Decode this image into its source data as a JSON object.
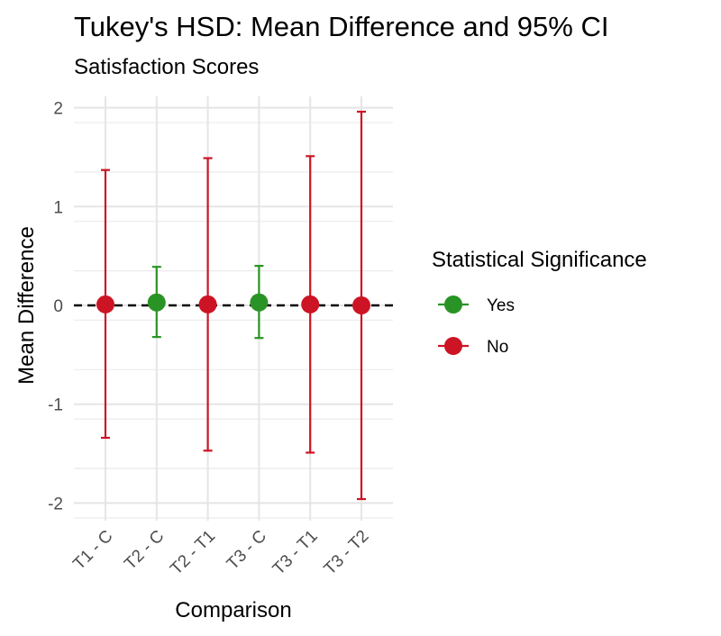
{
  "chart_data": {
    "type": "errorbar",
    "title": "Tukey's HSD: Mean Difference and 95% CI",
    "subtitle": "Satisfaction Scores",
    "xlabel": "Comparison",
    "ylabel": "Mean Difference",
    "ylim": [
      -2.15,
      2.15
    ],
    "yticks": [
      -2,
      -1,
      0,
      1,
      2
    ],
    "ytick_labels": [
      "-2",
      "-1",
      "0",
      "1",
      "2"
    ],
    "reference_line": 0,
    "categories": [
      "T1 - C",
      "T2 - C",
      "T2 - T1",
      "T3 - C",
      "T3 - T1",
      "T3 - T2"
    ],
    "points": [
      {
        "comparison": "T1 - C",
        "diff": 0.01,
        "lwr": -1.34,
        "upr": 1.37,
        "significant": "No"
      },
      {
        "comparison": "T2 - C",
        "diff": 0.03,
        "lwr": -0.32,
        "upr": 0.39,
        "significant": "Yes"
      },
      {
        "comparison": "T2 - T1",
        "diff": 0.01,
        "lwr": -1.47,
        "upr": 1.49,
        "significant": "No"
      },
      {
        "comparison": "T3 - C",
        "diff": 0.03,
        "lwr": -0.33,
        "upr": 0.4,
        "significant": "Yes"
      },
      {
        "comparison": "T3 - T1",
        "diff": 0.01,
        "lwr": -1.49,
        "upr": 1.51,
        "significant": "No"
      },
      {
        "comparison": "T3 - T2",
        "diff": 0.0,
        "lwr": -1.96,
        "upr": 1.96,
        "significant": "No"
      }
    ],
    "legend": {
      "title": "Statistical Significance",
      "position": "right",
      "entries": [
        {
          "label": "Yes",
          "color": "#2a9325"
        },
        {
          "label": "No",
          "color": "#cc1424"
        }
      ]
    },
    "colors": {
      "Yes": "#2a9325",
      "No": "#cc1424"
    },
    "grid": true
  }
}
